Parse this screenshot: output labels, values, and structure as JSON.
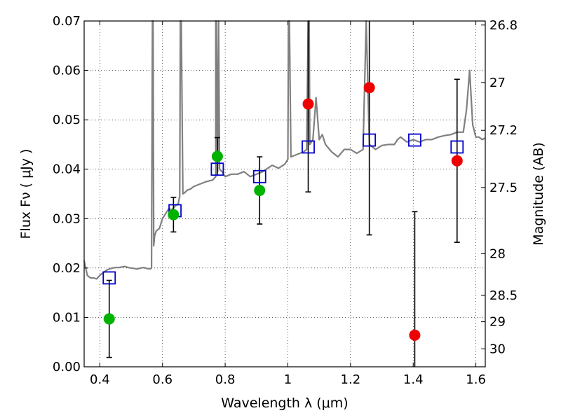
{
  "chart_data": {
    "type": "scatter",
    "xlabel": "Wavelength  λ (μm)",
    "ylabel": "Flux  Fν ( μJy )",
    "y2label": "Magnitude (AB)",
    "xlim": [
      0.35,
      1.63
    ],
    "ylim": [
      0.0,
      0.07
    ],
    "grid": true,
    "x_ticks": [
      0.4,
      0.6,
      0.8,
      1.0,
      1.2,
      1.4,
      1.6
    ],
    "x_tick_labels": [
      "0.4",
      "0.6",
      "0.8",
      "1",
      "1.2",
      "1.4",
      "1.6"
    ],
    "y_ticks": [
      0.0,
      0.01,
      0.02,
      0.03,
      0.04,
      0.05,
      0.06,
      0.07
    ],
    "y_tick_labels": [
      "0.00",
      "0.01",
      "0.02",
      "0.03",
      "0.04",
      "0.05",
      "0.06",
      "0.07"
    ],
    "y2_tick_labels": [
      "26.8",
      "27",
      "27.2",
      "27.5",
      "28",
      "28.5",
      "29",
      "30"
    ],
    "model_spectrum": {
      "color": "#808080",
      "x": [
        0.35,
        0.36,
        0.37,
        0.38,
        0.39,
        0.4,
        0.41,
        0.42,
        0.43,
        0.44,
        0.45,
        0.46,
        0.47,
        0.48,
        0.49,
        0.5,
        0.51,
        0.52,
        0.53,
        0.54,
        0.55,
        0.56,
        0.565,
        0.568,
        0.57,
        0.572,
        0.575,
        0.58,
        0.59,
        0.6,
        0.61,
        0.62,
        0.63,
        0.64,
        0.65,
        0.655,
        0.657,
        0.66,
        0.665,
        0.67,
        0.68,
        0.69,
        0.7,
        0.72,
        0.74,
        0.76,
        0.77,
        0.77,
        0.772,
        0.776,
        0.779,
        0.782,
        0.79,
        0.8,
        0.82,
        0.84,
        0.86,
        0.88,
        0.9,
        0.92,
        0.95,
        0.97,
        0.99,
        1.0,
        1.002,
        1.005,
        1.01,
        1.03,
        1.05,
        1.06,
        1.065,
        1.068,
        1.07,
        1.08,
        1.09,
        1.1,
        1.11,
        1.12,
        1.14,
        1.16,
        1.18,
        1.2,
        1.22,
        1.24,
        1.25,
        1.26,
        1.28,
        1.3,
        1.32,
        1.34,
        1.35,
        1.36,
        1.38,
        1.4,
        1.42,
        1.44,
        1.46,
        1.48,
        1.5,
        1.52,
        1.54,
        1.56,
        1.57,
        1.58,
        1.59,
        1.6,
        1.61,
        1.62,
        1.63
      ],
      "y": [
        0.0215,
        0.0185,
        0.018,
        0.018,
        0.0178,
        0.0185,
        0.019,
        0.0195,
        0.0198,
        0.02,
        0.0201,
        0.0201,
        0.0202,
        0.0203,
        0.0201,
        0.02,
        0.0199,
        0.0198,
        0.02,
        0.0201,
        0.0199,
        0.0198,
        0.02,
        0.07,
        0.07,
        0.0245,
        0.0265,
        0.0275,
        0.028,
        0.03,
        0.031,
        0.032,
        0.0318,
        0.0325,
        0.033,
        0.0345,
        0.07,
        0.07,
        0.035,
        0.0352,
        0.0358,
        0.036,
        0.0365,
        0.037,
        0.0375,
        0.0378,
        0.0385,
        0.07,
        0.07,
        0.0395,
        0.07,
        0.04,
        0.0395,
        0.0385,
        0.039,
        0.039,
        0.0395,
        0.0385,
        0.039,
        0.0395,
        0.0408,
        0.0402,
        0.041,
        0.042,
        0.07,
        0.07,
        0.0425,
        0.043,
        0.0435,
        0.044,
        0.07,
        0.07,
        0.045,
        0.046,
        0.0545,
        0.046,
        0.047,
        0.045,
        0.0435,
        0.0425,
        0.044,
        0.044,
        0.0432,
        0.044,
        0.07,
        0.045,
        0.044,
        0.0448,
        0.045,
        0.045,
        0.046,
        0.0465,
        0.0455,
        0.046,
        0.0455,
        0.046,
        0.046,
        0.0465,
        0.0468,
        0.047,
        0.0475,
        0.0475,
        0.052,
        0.06,
        0.049,
        0.0465,
        0.0465,
        0.046,
        0.0463
      ]
    },
    "series": [
      {
        "name": "",
        "marker": "square-open",
        "color": "#0000cc",
        "x": [
          0.43,
          0.64,
          0.775,
          0.91,
          1.065,
          1.26,
          1.405,
          1.54
        ],
        "y": [
          0.018,
          0.0316,
          0.04,
          0.0385,
          0.0445,
          0.0459,
          0.0459,
          0.0445
        ]
      },
      {
        "name": "",
        "marker": "circle",
        "color": "#00b300",
        "x": [
          0.43,
          0.635,
          0.775,
          0.91
        ],
        "y": [
          0.0097,
          0.0308,
          0.0426,
          0.0357
        ],
        "err": [
          0.0078,
          0.0035,
          0.0038,
          0.0068
        ]
      },
      {
        "name": "",
        "marker": "circle",
        "color": "#ee0000",
        "x": [
          1.065,
          1.26,
          1.405,
          1.54
        ],
        "y": [
          0.0532,
          0.0565,
          0.0064,
          0.0417
        ],
        "err": [
          0.0178,
          0.0298,
          0.025,
          0.0165
        ]
      }
    ]
  }
}
